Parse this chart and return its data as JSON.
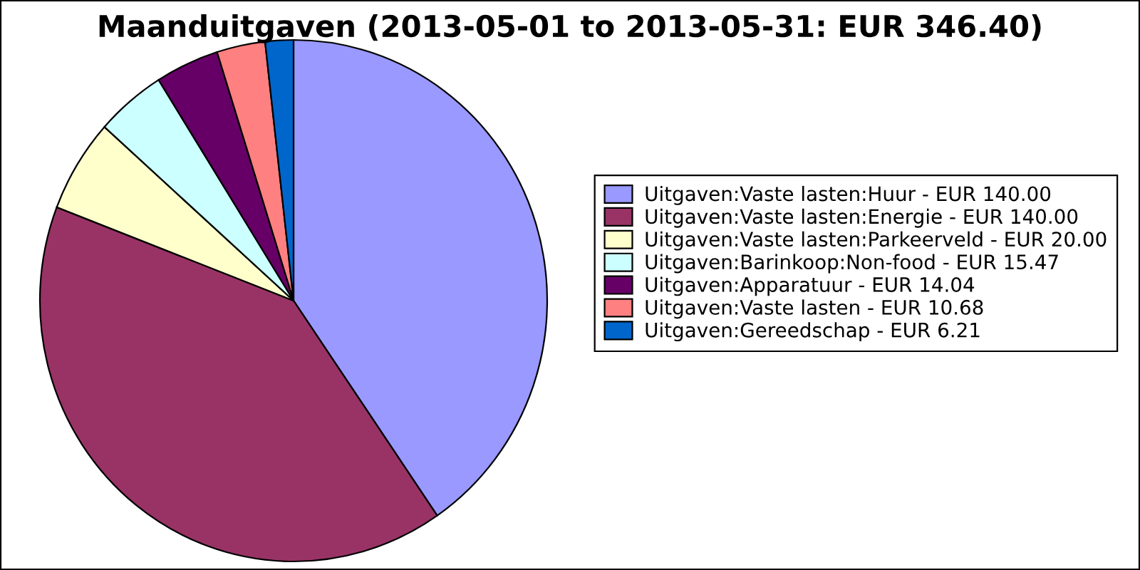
{
  "chart_data": {
    "type": "pie",
    "title": "Maanduitgaven (2013-05-01 to 2013-05-31: EUR 346.40)",
    "categories": [
      "Uitgaven:Vaste lasten:Huur - EUR 140.00",
      "Uitgaven:Vaste lasten:Energie - EUR 140.00",
      "Uitgaven:Vaste lasten:Parkeerveld - EUR 20.00",
      "Uitgaven:Barinkoop:Non-food - EUR 15.47",
      "Uitgaven:Apparatuur - EUR 14.04",
      "Uitgaven:Vaste lasten - EUR 10.68",
      "Uitgaven:Gereedschap - EUR 6.21"
    ],
    "values": [
      140.0,
      140.0,
      20.0,
      15.47,
      14.04,
      10.68,
      6.21
    ],
    "colors": [
      "#9999ff",
      "#993366",
      "#ffffcc",
      "#ccffff",
      "#660066",
      "#ff8080",
      "#0066cc"
    ],
    "legend": "right"
  }
}
